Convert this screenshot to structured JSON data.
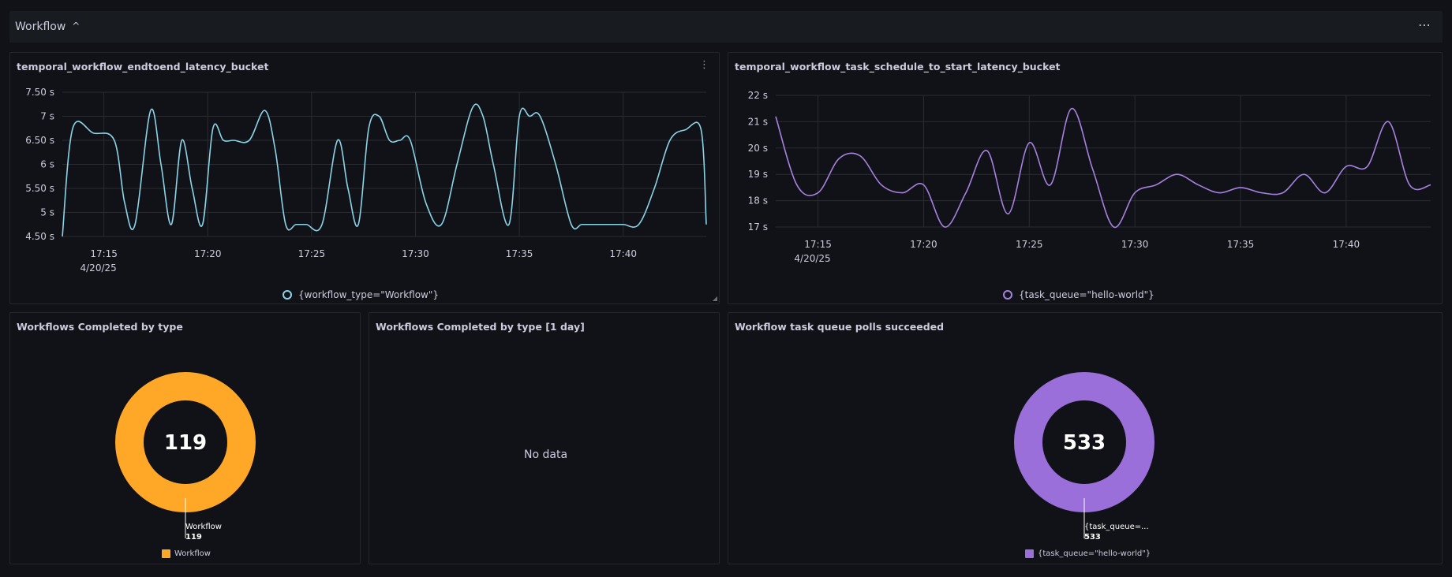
{
  "row": {
    "title": "Workflow",
    "menu": "⋯"
  },
  "panels": {
    "latency_e2e": {
      "title": "temporal_workflow_endtoend_latency_bucket",
      "menu": "⋮",
      "legend": "{workflow_type=\"Workflow\"}",
      "y_ticks": [
        "7.50 s",
        "7 s",
        "6.50 s",
        "6 s",
        "5.50 s",
        "5 s",
        "4.50 s"
      ],
      "x_ticks": [
        "17:15",
        "17:20",
        "17:25",
        "17:30",
        "17:35",
        "17:40"
      ],
      "x_date": "4/20/25",
      "color": "#8ad4e8"
    },
    "latency_sched": {
      "title": "temporal_workflow_task_schedule_to_start_latency_bucket",
      "legend": "{task_queue=\"hello-world\"}",
      "y_ticks": [
        "22 s",
        "21 s",
        "20 s",
        "19 s",
        "18 s",
        "17 s"
      ],
      "x_ticks": [
        "17:15",
        "17:20",
        "17:25",
        "17:30",
        "17:35",
        "17:40"
      ],
      "x_date": "4/20/25",
      "color": "#a682e0"
    },
    "completed": {
      "title": "Workflows Completed by type",
      "value": "119",
      "label_name": "Workflow",
      "label_value": "119",
      "legend": "Workflow",
      "color": "#ffa726"
    },
    "completed_day": {
      "title": "Workflows Completed by type [1 day]",
      "empty": "No data"
    },
    "polls": {
      "title": "Workflow task queue polls succeeded",
      "value": "533",
      "label_name": "{task_queue=...",
      "label_value": "533",
      "legend": "{task_queue=\"hello-world\"}",
      "color": "#9a6fd9"
    }
  },
  "chart_data": [
    {
      "type": "line",
      "title": "temporal_workflow_endtoend_latency_bucket",
      "ylim": [
        4.5,
        7.5
      ],
      "x_range": [
        "17:13",
        "17:44"
      ],
      "series": [
        {
          "name": "{workflow_type=\"Workflow\"}",
          "x": [
            "17:13:00",
            "17:13:30",
            "17:14:30",
            "17:15:30",
            "17:16:00",
            "17:16:30",
            "17:17:15",
            "17:17:45",
            "17:18:15",
            "17:18:45",
            "17:19:15",
            "17:19:45",
            "17:20:15",
            "17:20:45",
            "17:21:15",
            "17:22:00",
            "17:22:45",
            "17:23:15",
            "17:23:45",
            "17:24:15",
            "17:24:45",
            "17:25:30",
            "17:26:15",
            "17:26:45",
            "17:27:15",
            "17:27:45",
            "17:28:15",
            "17:28:45",
            "17:29:15",
            "17:29:45",
            "17:30:30",
            "17:31:15",
            "17:32:00",
            "17:32:45",
            "17:33:15",
            "17:33:45",
            "17:34:30",
            "17:35:00",
            "17:35:30",
            "17:36:00",
            "17:36:45",
            "17:37:30",
            "17:38:00",
            "17:38:30",
            "17:39:15",
            "17:40:00",
            "17:40:45",
            "17:41:30",
            "17:42:15",
            "17:43:00",
            "17:43:45",
            "17:44:00"
          ],
          "y": [
            4.5,
            6.75,
            6.65,
            6.5,
            5.2,
            4.75,
            7.12,
            6.0,
            4.75,
            6.5,
            5.5,
            4.75,
            6.75,
            6.5,
            6.5,
            6.5,
            7.12,
            6.3,
            4.75,
            4.75,
            4.75,
            4.75,
            6.5,
            5.5,
            4.75,
            6.75,
            7.0,
            6.5,
            6.5,
            6.5,
            5.2,
            4.75,
            6.0,
            7.18,
            7.0,
            6.0,
            4.75,
            7.0,
            7.0,
            7.0,
            6.0,
            4.75,
            4.75,
            4.75,
            4.75,
            4.75,
            4.75,
            5.5,
            6.5,
            6.72,
            6.72,
            4.75
          ]
        }
      ]
    },
    {
      "type": "line",
      "title": "temporal_workflow_task_schedule_to_start_latency_bucket",
      "ylim": [
        17,
        22
      ],
      "x_range": [
        "17:13",
        "17:44"
      ],
      "series": [
        {
          "name": "{task_queue=\"hello-world\"}",
          "x": [
            "17:13:00",
            "17:14:00",
            "17:15:00",
            "17:16:00",
            "17:17:00",
            "17:18:00",
            "17:19:00",
            "17:20:00",
            "17:21:00",
            "17:22:00",
            "17:23:00",
            "17:24:00",
            "17:25:00",
            "17:26:00",
            "17:27:00",
            "17:28:00",
            "17:29:00",
            "17:30:00",
            "17:31:00",
            "17:32:00",
            "17:33:00",
            "17:34:00",
            "17:35:00",
            "17:36:00",
            "17:37:00",
            "17:38:00",
            "17:39:00",
            "17:40:00",
            "17:41:00",
            "17:42:00",
            "17:43:00",
            "17:44:00"
          ],
          "y": [
            21.2,
            18.6,
            18.3,
            19.6,
            19.7,
            18.6,
            18.3,
            18.6,
            17.0,
            18.3,
            19.9,
            17.5,
            20.2,
            18.6,
            21.5,
            19.2,
            17.0,
            18.3,
            18.6,
            19.0,
            18.6,
            18.3,
            18.5,
            18.3,
            18.3,
            19.0,
            18.3,
            19.3,
            19.3,
            21.0,
            18.6,
            18.6
          ]
        }
      ]
    },
    {
      "type": "pie",
      "title": "Workflows Completed by type",
      "slices": [
        {
          "name": "Workflow",
          "value": 119
        }
      ]
    },
    {
      "type": "pie",
      "title": "Workflow task queue polls succeeded",
      "slices": [
        {
          "name": "{task_queue=\"hello-world\"}",
          "value": 533
        }
      ]
    }
  ]
}
